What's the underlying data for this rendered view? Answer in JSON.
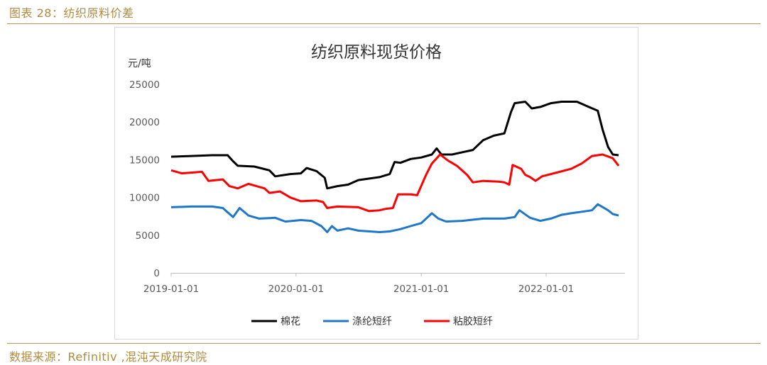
{
  "figure": {
    "caption": "图表 28：纺织原料价差",
    "source": "数据来源：Refinitiv ,混沌天成研究院"
  },
  "colors": {
    "accent": "#b08a3e",
    "cotton": "#000000",
    "polyester": "#1f77c9",
    "viscose": "#ff0000"
  },
  "chart_data": {
    "type": "line",
    "title": "纺织原料现货价格",
    "ylabel": "元/吨",
    "xlabel": "",
    "ylim": [
      0,
      25000
    ],
    "yticks": [
      "25000",
      "20000",
      "15000",
      "10000",
      "5000",
      "0"
    ],
    "xticks": [
      "2019-01-01",
      "2020-01-01",
      "2021-01-01",
      "2022-01-01"
    ],
    "grid": false,
    "legend": "bottom",
    "series": [
      {
        "name": "棉花",
        "color": "#000000",
        "points": [
          [
            "2019-01-01",
            15400
          ],
          [
            "2019-03-01",
            15500
          ],
          [
            "2019-05-01",
            15600
          ],
          [
            "2019-06-15",
            15600
          ],
          [
            "2019-07-01",
            14800
          ],
          [
            "2019-07-15",
            14200
          ],
          [
            "2019-09-01",
            14100
          ],
          [
            "2019-10-15",
            13600
          ],
          [
            "2019-11-01",
            12800
          ],
          [
            "2019-12-15",
            13100
          ],
          [
            "2020-01-15",
            13200
          ],
          [
            "2020-02-01",
            13900
          ],
          [
            "2020-03-01",
            13500
          ],
          [
            "2020-03-25",
            12600
          ],
          [
            "2020-04-01",
            11200
          ],
          [
            "2020-05-01",
            11500
          ],
          [
            "2020-06-01",
            11700
          ],
          [
            "2020-07-01",
            12300
          ],
          [
            "2020-09-01",
            12700
          ],
          [
            "2020-10-01",
            13100
          ],
          [
            "2020-10-15",
            14700
          ],
          [
            "2020-11-01",
            14600
          ],
          [
            "2020-12-01",
            15100
          ],
          [
            "2021-01-01",
            15300
          ],
          [
            "2021-02-01",
            15700
          ],
          [
            "2021-02-15",
            16500
          ],
          [
            "2021-03-01",
            15700
          ],
          [
            "2021-04-01",
            15700
          ],
          [
            "2021-05-01",
            16000
          ],
          [
            "2021-06-01",
            16300
          ],
          [
            "2021-07-01",
            17600
          ],
          [
            "2021-08-01",
            18200
          ],
          [
            "2021-09-01",
            18500
          ],
          [
            "2021-09-20",
            21300
          ],
          [
            "2021-10-01",
            22500
          ],
          [
            "2021-11-01",
            22700
          ],
          [
            "2021-11-20",
            21800
          ],
          [
            "2021-12-15",
            22000
          ],
          [
            "2022-01-15",
            22500
          ],
          [
            "2022-02-15",
            22700
          ],
          [
            "2022-04-01",
            22700
          ],
          [
            "2022-05-01",
            22100
          ],
          [
            "2022-06-01",
            21500
          ],
          [
            "2022-06-15",
            19000
          ],
          [
            "2022-07-01",
            16700
          ],
          [
            "2022-07-15",
            15700
          ],
          [
            "2022-08-01",
            15600
          ]
        ]
      },
      {
        "name": "涤纶短纤",
        "color": "#1f77c9",
        "points": [
          [
            "2019-01-01",
            8700
          ],
          [
            "2019-03-01",
            8800
          ],
          [
            "2019-05-01",
            8800
          ],
          [
            "2019-06-01",
            8600
          ],
          [
            "2019-07-01",
            7400
          ],
          [
            "2019-07-20",
            8600
          ],
          [
            "2019-08-15",
            7600
          ],
          [
            "2019-09-15",
            7200
          ],
          [
            "2019-11-01",
            7300
          ],
          [
            "2019-12-01",
            6800
          ],
          [
            "2020-01-15",
            7000
          ],
          [
            "2020-02-15",
            6900
          ],
          [
            "2020-03-15",
            6200
          ],
          [
            "2020-04-01",
            5400
          ],
          [
            "2020-04-15",
            6200
          ],
          [
            "2020-05-01",
            5600
          ],
          [
            "2020-06-01",
            5900
          ],
          [
            "2020-07-01",
            5600
          ],
          [
            "2020-09-01",
            5400
          ],
          [
            "2020-10-01",
            5500
          ],
          [
            "2020-11-01",
            5800
          ],
          [
            "2020-12-01",
            6200
          ],
          [
            "2021-01-01",
            6600
          ],
          [
            "2021-02-01",
            7900
          ],
          [
            "2021-02-20",
            7200
          ],
          [
            "2021-03-15",
            6800
          ],
          [
            "2021-05-01",
            6900
          ],
          [
            "2021-07-01",
            7200
          ],
          [
            "2021-09-01",
            7200
          ],
          [
            "2021-10-01",
            7400
          ],
          [
            "2021-10-15",
            8300
          ],
          [
            "2021-11-15",
            7300
          ],
          [
            "2021-12-15",
            6900
          ],
          [
            "2022-01-15",
            7200
          ],
          [
            "2022-02-15",
            7700
          ],
          [
            "2022-03-15",
            7900
          ],
          [
            "2022-04-15",
            8100
          ],
          [
            "2022-05-15",
            8300
          ],
          [
            "2022-06-01",
            9100
          ],
          [
            "2022-07-01",
            8300
          ],
          [
            "2022-07-15",
            7800
          ],
          [
            "2022-08-01",
            7600
          ]
        ]
      },
      {
        "name": "粘胶短纤",
        "color": "#ff0000",
        "points": [
          [
            "2019-01-01",
            13600
          ],
          [
            "2019-02-01",
            13200
          ],
          [
            "2019-04-01",
            13400
          ],
          [
            "2019-04-20",
            12200
          ],
          [
            "2019-06-01",
            12400
          ],
          [
            "2019-06-20",
            11500
          ],
          [
            "2019-07-15",
            11200
          ],
          [
            "2019-08-15",
            11800
          ],
          [
            "2019-10-01",
            11200
          ],
          [
            "2019-10-15",
            10600
          ],
          [
            "2019-11-15",
            10800
          ],
          [
            "2019-12-15",
            10000
          ],
          [
            "2020-01-15",
            9500
          ],
          [
            "2020-03-01",
            9600
          ],
          [
            "2020-03-20",
            9400
          ],
          [
            "2020-04-01",
            8600
          ],
          [
            "2020-05-01",
            8800
          ],
          [
            "2020-07-01",
            8700
          ],
          [
            "2020-08-01",
            8200
          ],
          [
            "2020-09-01",
            8300
          ],
          [
            "2020-09-20",
            8500
          ],
          [
            "2020-10-10",
            8600
          ],
          [
            "2020-10-25",
            10400
          ],
          [
            "2020-12-01",
            10400
          ],
          [
            "2020-12-20",
            10300
          ],
          [
            "2021-01-15",
            13000
          ],
          [
            "2021-02-01",
            14500
          ],
          [
            "2021-02-25",
            15700
          ],
          [
            "2021-03-20",
            14900
          ],
          [
            "2021-04-15",
            14200
          ],
          [
            "2021-05-15",
            13000
          ],
          [
            "2021-06-01",
            12000
          ],
          [
            "2021-07-01",
            12200
          ],
          [
            "2021-08-15",
            12100
          ],
          [
            "2021-09-01",
            12000
          ],
          [
            "2021-09-15",
            11700
          ],
          [
            "2021-09-25",
            14300
          ],
          [
            "2021-10-20",
            13800
          ],
          [
            "2021-11-01",
            13000
          ],
          [
            "2021-11-15",
            12700
          ],
          [
            "2021-12-01",
            12200
          ],
          [
            "2021-12-20",
            12800
          ],
          [
            "2022-02-01",
            13300
          ],
          [
            "2022-03-15",
            13800
          ],
          [
            "2022-04-15",
            14500
          ],
          [
            "2022-05-15",
            15500
          ],
          [
            "2022-06-15",
            15700
          ],
          [
            "2022-07-15",
            15200
          ],
          [
            "2022-08-01",
            14200
          ]
        ]
      }
    ]
  }
}
